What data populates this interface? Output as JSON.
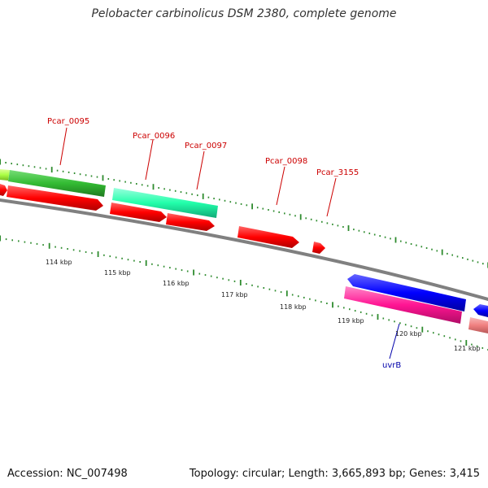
{
  "title": "Pelobacter carbinolicus DSM 2380, complete genome",
  "footer": {
    "accession": "Accession: NC_007498",
    "topology": "Topology: circular; Length: 3,665,893 bp; Genes: 3,415"
  },
  "scale_labels": [
    "114 kbp",
    "115 kbp",
    "116 kbp",
    "117 kbp",
    "118 kbp",
    "119 kbp",
    "120 kbp",
    "121 kbp"
  ],
  "gene_labels": [
    {
      "name": "Pcar_0095",
      "color": "#cc0000"
    },
    {
      "name": "Pcar_0096",
      "color": "#cc0000"
    },
    {
      "name": "Pcar_0097",
      "color": "#cc0000"
    },
    {
      "name": "Pcar_0098",
      "color": "#cc0000"
    },
    {
      "name": "Pcar_3155",
      "color": "#cc0000"
    },
    {
      "name": "uvrB",
      "color": "#0000aa"
    }
  ],
  "colors": {
    "backbone": "#808080",
    "ticks": "#2e8b2e",
    "cds": "#ff0000",
    "green_feature": "#33bb33",
    "lightgreen_feature": "#aaff44",
    "teal_feature": "#22ffaa",
    "blue_feature": "#0000ff",
    "pink_feature": "#ff1493",
    "salmon_feature": "#f08080"
  }
}
